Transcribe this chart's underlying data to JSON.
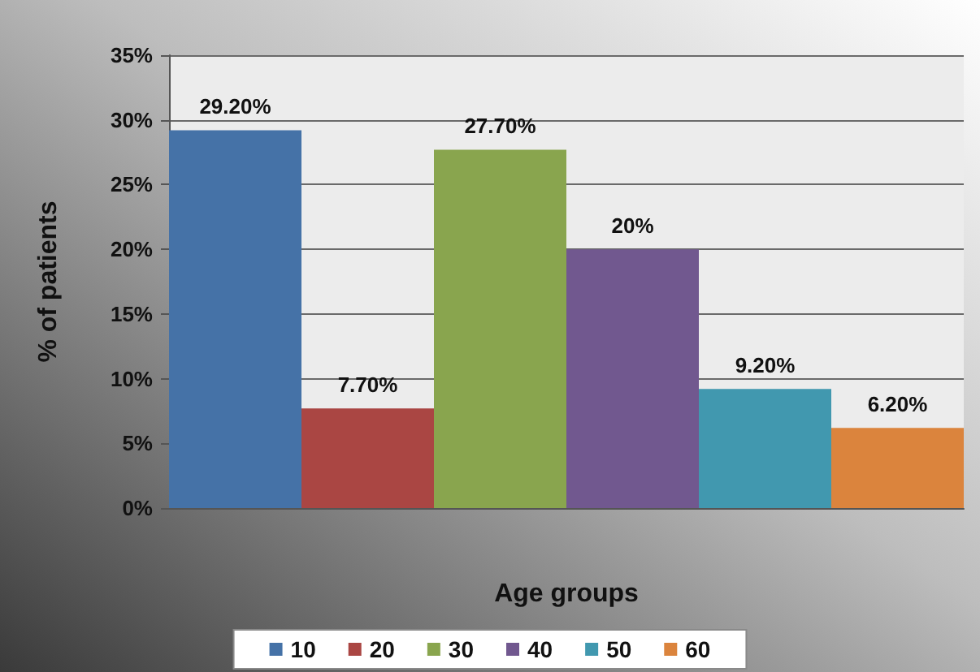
{
  "chart_data": {
    "type": "bar",
    "xlabel": "Age groups",
    "ylabel": "% of patients",
    "categories": [
      null
    ],
    "series": [
      {
        "name": "10",
        "color": "#4572a7",
        "values": [
          29.2
        ],
        "value_labels": [
          "29.20%"
        ]
      },
      {
        "name": "20",
        "color": "#aa4643",
        "values": [
          7.7
        ],
        "value_labels": [
          "7.70%"
        ]
      },
      {
        "name": "30",
        "color": "#89a54e",
        "values": [
          27.7
        ],
        "value_labels": [
          "27.70%"
        ]
      },
      {
        "name": "40",
        "color": "#71588f",
        "values": [
          20
        ],
        "value_labels": [
          "20%"
        ]
      },
      {
        "name": "50",
        "color": "#4198af",
        "values": [
          9.2
        ],
        "value_labels": [
          "9.20%"
        ]
      },
      {
        "name": "60",
        "color": "#db843d",
        "values": [
          6.2
        ],
        "value_labels": [
          "6.20%"
        ]
      }
    ],
    "ylim": [
      0,
      35
    ],
    "yticks": [
      {
        "value": 0,
        "label": "0%"
      },
      {
        "value": 5,
        "label": "5%"
      },
      {
        "value": 10,
        "label": "10%"
      },
      {
        "value": 15,
        "label": "15%"
      },
      {
        "value": 20,
        "label": "20%"
      },
      {
        "value": 25,
        "label": "25%"
      },
      {
        "value": 30,
        "label": "30%"
      },
      {
        "value": 35,
        "label": "35%"
      }
    ],
    "grid": "y",
    "legend": "bottom"
  }
}
